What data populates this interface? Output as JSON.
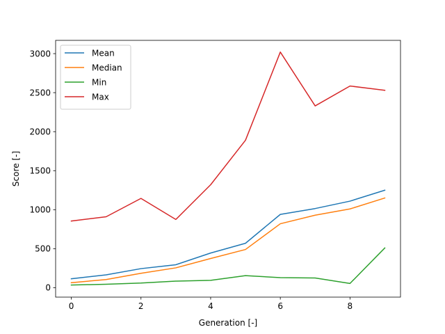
{
  "chart_data": {
    "type": "line",
    "title": "",
    "xlabel": "Generation [-]",
    "ylabel": "Score [-]",
    "xlim": [
      -0.45,
      9.45
    ],
    "ylim": [
      -120,
      3170
    ],
    "xticks": [
      0,
      2,
      4,
      6,
      8
    ],
    "yticks": [
      0,
      500,
      1000,
      1500,
      2000,
      2500,
      3000
    ],
    "grid": false,
    "legend": "top-left",
    "x": [
      0,
      1,
      2,
      3,
      4,
      5,
      6,
      7,
      8,
      9
    ],
    "series": [
      {
        "name": "Mean",
        "color": "#1f77b4",
        "values": [
          115,
          165,
          245,
          295,
          445,
          570,
          940,
          1015,
          1110,
          1250
        ]
      },
      {
        "name": "Median",
        "color": "#ff7f0e",
        "values": [
          65,
          105,
          185,
          255,
          375,
          490,
          820,
          930,
          1010,
          1150
        ]
      },
      {
        "name": "Min",
        "color": "#2ca02c",
        "values": [
          35,
          45,
          60,
          85,
          95,
          155,
          130,
          125,
          55,
          510
        ]
      },
      {
        "name": "Max",
        "color": "#d62728",
        "values": [
          855,
          910,
          1145,
          875,
          1320,
          1890,
          3020,
          2330,
          2585,
          2530
        ]
      }
    ]
  }
}
